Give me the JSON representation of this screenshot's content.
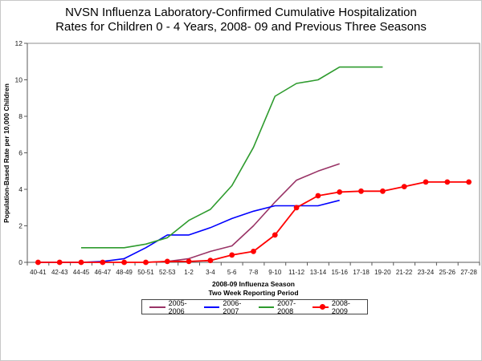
{
  "title": {
    "line1": "NVSN Influenza Laboratory-Confirmed Cumulative Hospitalization",
    "line2": "Rates for Children 0 - 4 Years, 2008- 09 and Previous Three Seasons"
  },
  "chart_data": {
    "type": "line",
    "title": "NVSN Influenza Laboratory-Confirmed Cumulative Hospitalization Rates for Children 0 - 4 Years, 2008- 09 and Previous Three Seasons",
    "categories": [
      "40-41",
      "42-43",
      "44-45",
      "46-47",
      "48-49",
      "50-51",
      "52-53",
      "1-2",
      "3-4",
      "5-6",
      "7-8",
      "9-10",
      "11-12",
      "13-14",
      "15-16",
      "17-18",
      "19-20",
      "21-22",
      "23-24",
      "25-26",
      "27-28"
    ],
    "xlabel_line1": "2008-09 Influenza Season",
    "xlabel_line2": "Two Week Reporting Period",
    "ylabel": "Population-Based Rate per 10,000 Children",
    "ylim": [
      0,
      12
    ],
    "yticks": [
      0,
      2,
      4,
      6,
      8,
      10,
      12
    ],
    "grid": false,
    "legend_position": "bottom",
    "series": [
      {
        "name": "2005-2006",
        "color": "#993366",
        "marker": "none",
        "values": [
          null,
          null,
          null,
          null,
          null,
          0,
          0.05,
          0.2,
          0.6,
          0.9,
          2.0,
          3.3,
          4.5,
          5.0,
          5.4,
          null,
          null,
          null,
          null,
          null,
          null
        ]
      },
      {
        "name": "2006-2007",
        "color": "#0000ff",
        "marker": "none",
        "values": [
          0,
          0,
          0,
          0.05,
          0.2,
          0.8,
          1.5,
          1.5,
          1.9,
          2.4,
          2.8,
          3.1,
          3.1,
          3.1,
          3.4,
          null,
          null,
          null,
          null,
          null,
          null
        ]
      },
      {
        "name": "2007-2008",
        "color": "#2e9b2e",
        "marker": "none",
        "values": [
          null,
          null,
          0.8,
          0.8,
          0.8,
          1.0,
          1.35,
          2.3,
          2.9,
          4.2,
          6.3,
          9.1,
          9.8,
          10.0,
          10.7,
          10.7,
          10.7,
          null,
          null,
          null,
          null
        ]
      },
      {
        "name": "2008-2009",
        "color": "#ff0000",
        "marker": "circle",
        "values": [
          0,
          0,
          0,
          0,
          0,
          0,
          0.05,
          0.05,
          0.1,
          0.4,
          0.6,
          1.5,
          3.0,
          3.65,
          3.85,
          3.9,
          3.9,
          4.15,
          4.4,
          4.4,
          4.4
        ]
      }
    ]
  }
}
